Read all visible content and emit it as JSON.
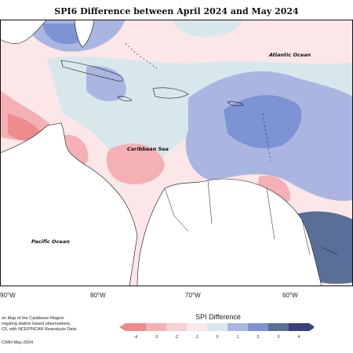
{
  "title": "SPI6 Difference between April 2024 and May 2024",
  "places": {
    "atlantic": "Atlantic Ocean",
    "caribbean": "Caribbean Sea",
    "pacific": "Pacific Ocean"
  },
  "longitude_ticks": [
    "90°W",
    "80°W",
    "70°W",
    "60°W"
  ],
  "footnote_lines": [
    "on Map of the Caribbean Region",
    "regating station based observations,",
    "CF, with NCEP/NCAR Reanalysis Data."
  ],
  "credit": "CIMH May-2024",
  "legend": {
    "title": "SPI Difference",
    "ticks": [
      "-4",
      "-3",
      "-2",
      "-1",
      "0",
      "1",
      "2",
      "3",
      "4"
    ],
    "colors": [
      "#ef8a8f",
      "#f4b0b4",
      "#f8cfd2",
      "#fbe6e8",
      "#d7e7ec",
      "#aab6e1",
      "#7e93d4",
      "#5a6f98",
      "#3a3f7e"
    ]
  },
  "colors": {
    "land": "#ffffff",
    "border": "#111111"
  }
}
